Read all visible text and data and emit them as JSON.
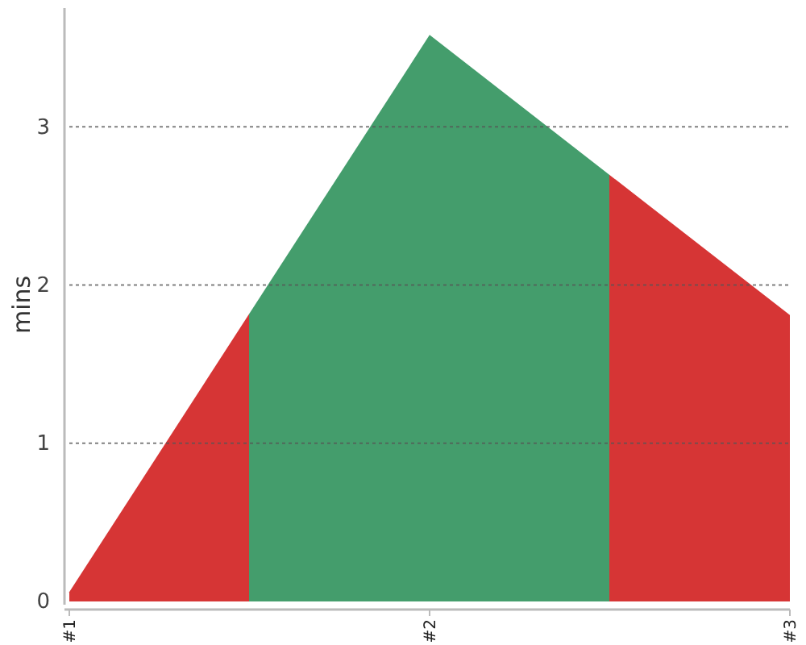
{
  "chart_data": {
    "type": "area",
    "ylabel": "mins",
    "categories": [
      "#1",
      "#2",
      "#3"
    ],
    "values": [
      0.06,
      3.58,
      1.81
    ],
    "colors": [
      "#d63535",
      "#449d6c",
      "#d63535"
    ],
    "ylim": [
      0,
      3.75
    ],
    "yticks": [
      0,
      1,
      2,
      3
    ],
    "grid": "y"
  }
}
